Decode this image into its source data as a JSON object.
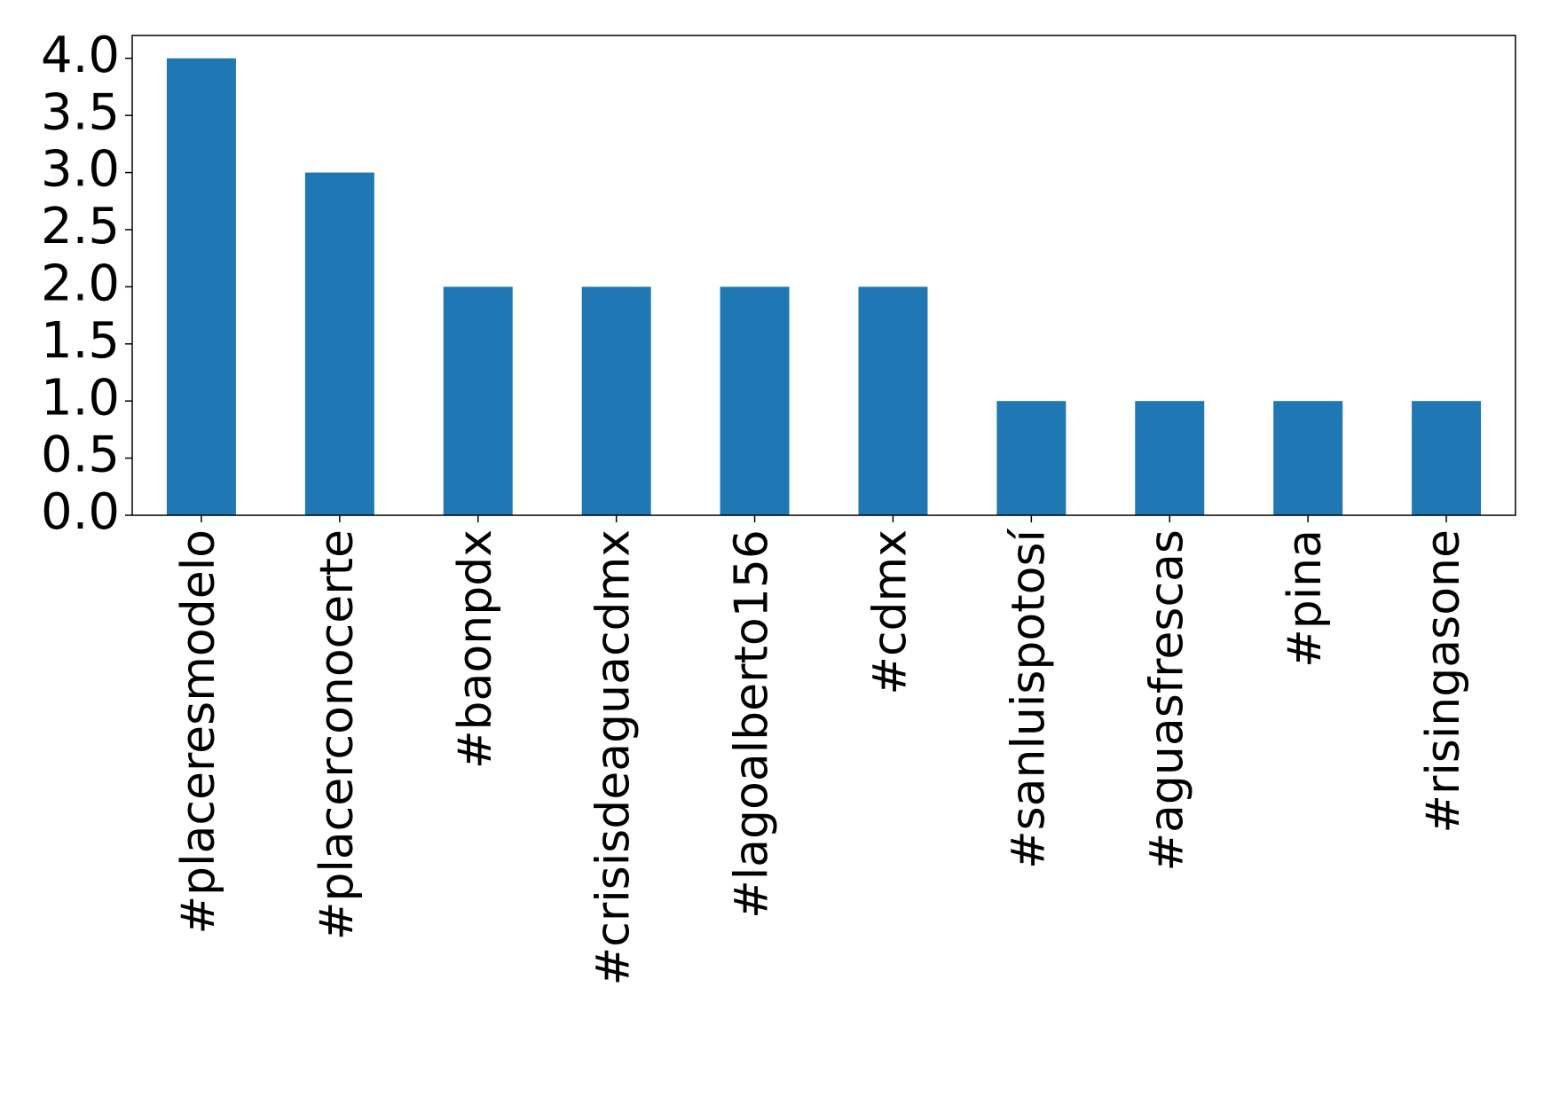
{
  "chart_data": {
    "type": "bar",
    "categories": [
      "#placeresmodelo",
      "#placerconocerte",
      "#baonpdx",
      "#crisisdeaguacdmx",
      "#lagoalberto156",
      "#cdmx",
      "#sanluispotosí",
      "#aguasfrescas",
      "#pina",
      "#risingasone"
    ],
    "values": [
      4,
      3,
      2,
      2,
      2,
      2,
      1,
      1,
      1,
      1
    ],
    "color": "#1f77b4",
    "ylim": [
      0,
      4.2
    ],
    "yticks": [
      {
        "value": 0,
        "label": "0.0"
      },
      0.5,
      {
        "value": 1,
        "label": "1.0"
      },
      1.5,
      {
        "value": 2,
        "label": "2.0"
      },
      2.5,
      {
        "value": 3,
        "label": "3.0"
      },
      3.5,
      {
        "value": 4,
        "label": "4.0"
      }
    ],
    "grid": false
  }
}
